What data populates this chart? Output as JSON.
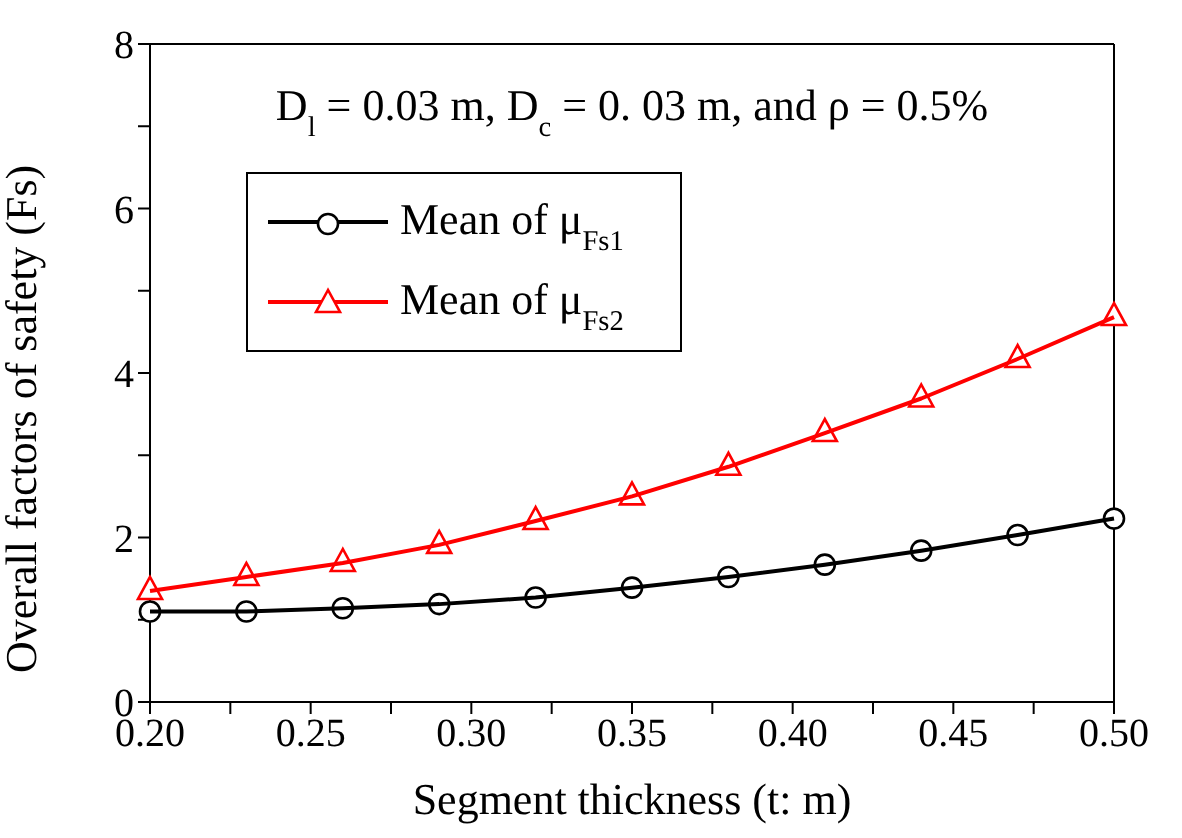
{
  "chart_data": {
    "type": "line",
    "xlabel": "Segment thickness (t: m)",
    "ylabel": "Overall factors of safety (Fs)",
    "annotations": [
      "D$_{l}$ = 0.03 m, D$_{c}$ = 0. 03 m, and ρ = 0.5%"
    ],
    "x": [
      0.2,
      0.23,
      0.26,
      0.29,
      0.32,
      0.35,
      0.38,
      0.41,
      0.44,
      0.47,
      0.5
    ],
    "series": [
      {
        "name": "Mean of μ$_{Fs1}$",
        "color": "#000000",
        "marker": "circle",
        "values": [
          1.1,
          1.1,
          1.14,
          1.19,
          1.27,
          1.39,
          1.52,
          1.67,
          1.84,
          2.03,
          2.23
        ]
      },
      {
        "name": "Mean of μ$_{Fs2}$",
        "color": "#ff0000",
        "marker": "triangle",
        "values": [
          1.35,
          1.52,
          1.69,
          1.91,
          2.2,
          2.5,
          2.86,
          3.27,
          3.69,
          4.17,
          4.68
        ]
      }
    ],
    "xlim": [
      0.2,
      0.5
    ],
    "xticks": [
      {
        "value": 0.2,
        "label": "0.20"
      },
      {
        "value": 0.225,
        "label": null
      },
      {
        "value": 0.25,
        "label": "0.25"
      },
      {
        "value": 0.275,
        "label": null
      },
      {
        "value": 0.3,
        "label": "0.30"
      },
      {
        "value": 0.325,
        "label": null
      },
      {
        "value": 0.35,
        "label": "0.35"
      },
      {
        "value": 0.375,
        "label": null
      },
      {
        "value": 0.4,
        "label": "0.40"
      },
      {
        "value": 0.425,
        "label": null
      },
      {
        "value": 0.45,
        "label": "0.45"
      },
      {
        "value": 0.475,
        "label": null
      },
      {
        "value": 0.5,
        "label": "0.50"
      }
    ],
    "ylim": [
      0,
      8
    ],
    "yticks": [
      0,
      {
        "value": 1,
        "label": null
      },
      2,
      {
        "value": 3,
        "label": null
      },
      4,
      {
        "value": 5,
        "label": null
      },
      6,
      {
        "value": 7,
        "label": null
      },
      8
    ],
    "grid": false,
    "legend": "top left"
  }
}
